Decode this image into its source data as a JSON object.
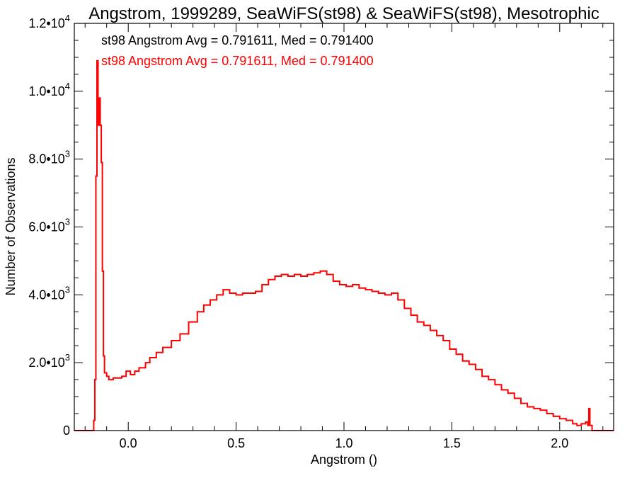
{
  "chart_data": {
    "type": "histogram",
    "title": "Angstrom, 1999289, SeaWiFS(st98) & SeaWiFS(st98), Mesotrophic",
    "xlabel": "Angstrom ()",
    "ylabel": "Number of Observations",
    "xlim": [
      -0.25,
      2.25
    ],
    "ylim": [
      0,
      12000
    ],
    "x_ticks": [
      {
        "value": 0.0,
        "label": "0.0"
      },
      {
        "value": 0.5,
        "label": "0.5"
      },
      {
        "value": 1.0,
        "label": "1.0"
      },
      {
        "value": 1.5,
        "label": "1.5"
      },
      {
        "value": 2.0,
        "label": "2.0"
      }
    ],
    "y_ticks": [
      {
        "value": 0,
        "mant": "0",
        "exp": ""
      },
      {
        "value": 2000,
        "mant": "2.0•10",
        "exp": "3"
      },
      {
        "value": 4000,
        "mant": "4.0•10",
        "exp": "3"
      },
      {
        "value": 6000,
        "mant": "6.0•10",
        "exp": "3"
      },
      {
        "value": 8000,
        "mant": "8.0•10",
        "exp": "3"
      },
      {
        "value": 10000,
        "mant": "1.0•10",
        "exp": "4"
      },
      {
        "value": 12000,
        "mant": "1.2•10",
        "exp": "4"
      }
    ],
    "stats": [
      {
        "text": "st98 Angstrom Avg = 0.791611, Med = 0.791400",
        "color": "#000000"
      },
      {
        "text": "st98 Angstrom Avg = 0.791611, Med = 0.791400",
        "color": "#ff0000"
      }
    ],
    "series": [
      {
        "color": "#ff0000",
        "step": true,
        "points": [
          [
            -0.25,
            0
          ],
          [
            -0.17,
            0
          ],
          [
            -0.16,
            300
          ],
          [
            -0.155,
            1500
          ],
          [
            -0.15,
            7500
          ],
          [
            -0.145,
            10900
          ],
          [
            -0.14,
            9000
          ],
          [
            -0.135,
            9800
          ],
          [
            -0.13,
            9000
          ],
          [
            -0.125,
            7900
          ],
          [
            -0.12,
            4700
          ],
          [
            -0.115,
            2200
          ],
          [
            -0.11,
            1700
          ],
          [
            -0.1,
            1600
          ],
          [
            -0.09,
            1500
          ],
          [
            -0.07,
            1550
          ],
          [
            -0.05,
            1550
          ],
          [
            -0.03,
            1600
          ],
          [
            -0.01,
            1750
          ],
          [
            0.01,
            1650
          ],
          [
            0.03,
            1750
          ],
          [
            0.05,
            1850
          ],
          [
            0.08,
            2000
          ],
          [
            0.1,
            2150
          ],
          [
            0.13,
            2300
          ],
          [
            0.16,
            2450
          ],
          [
            0.2,
            2650
          ],
          [
            0.24,
            2850
          ],
          [
            0.28,
            3200
          ],
          [
            0.32,
            3500
          ],
          [
            0.35,
            3700
          ],
          [
            0.38,
            3850
          ],
          [
            0.41,
            4000
          ],
          [
            0.44,
            4150
          ],
          [
            0.47,
            4050
          ],
          [
            0.5,
            4000
          ],
          [
            0.53,
            4050
          ],
          [
            0.56,
            4050
          ],
          [
            0.59,
            4100
          ],
          [
            0.62,
            4300
          ],
          [
            0.65,
            4450
          ],
          [
            0.68,
            4550
          ],
          [
            0.71,
            4600
          ],
          [
            0.74,
            4550
          ],
          [
            0.77,
            4600
          ],
          [
            0.8,
            4550
          ],
          [
            0.83,
            4600
          ],
          [
            0.86,
            4650
          ],
          [
            0.89,
            4700
          ],
          [
            0.92,
            4600
          ],
          [
            0.95,
            4400
          ],
          [
            0.98,
            4300
          ],
          [
            1.01,
            4250
          ],
          [
            1.04,
            4300
          ],
          [
            1.07,
            4200
          ],
          [
            1.1,
            4150
          ],
          [
            1.13,
            4100
          ],
          [
            1.16,
            4050
          ],
          [
            1.19,
            4000
          ],
          [
            1.22,
            4050
          ],
          [
            1.25,
            3850
          ],
          [
            1.28,
            3600
          ],
          [
            1.31,
            3400
          ],
          [
            1.34,
            3200
          ],
          [
            1.37,
            3100
          ],
          [
            1.4,
            2950
          ],
          [
            1.43,
            2800
          ],
          [
            1.46,
            2650
          ],
          [
            1.49,
            2400
          ],
          [
            1.52,
            2250
          ],
          [
            1.55,
            2050
          ],
          [
            1.58,
            1950
          ],
          [
            1.61,
            1800
          ],
          [
            1.64,
            1600
          ],
          [
            1.67,
            1500
          ],
          [
            1.7,
            1350
          ],
          [
            1.73,
            1200
          ],
          [
            1.76,
            1100
          ],
          [
            1.79,
            950
          ],
          [
            1.82,
            800
          ],
          [
            1.85,
            700
          ],
          [
            1.88,
            650
          ],
          [
            1.91,
            600
          ],
          [
            1.94,
            500
          ],
          [
            1.97,
            420
          ],
          [
            2.0,
            350
          ],
          [
            2.03,
            300
          ],
          [
            2.06,
            200
          ],
          [
            2.08,
            150
          ],
          [
            2.1,
            200
          ],
          [
            2.12,
            250
          ],
          [
            2.13,
            150
          ],
          [
            2.135,
            650
          ],
          [
            2.14,
            150
          ],
          [
            2.15,
            0
          ],
          [
            2.25,
            0
          ]
        ]
      }
    ],
    "grid": false,
    "legend": "none"
  }
}
